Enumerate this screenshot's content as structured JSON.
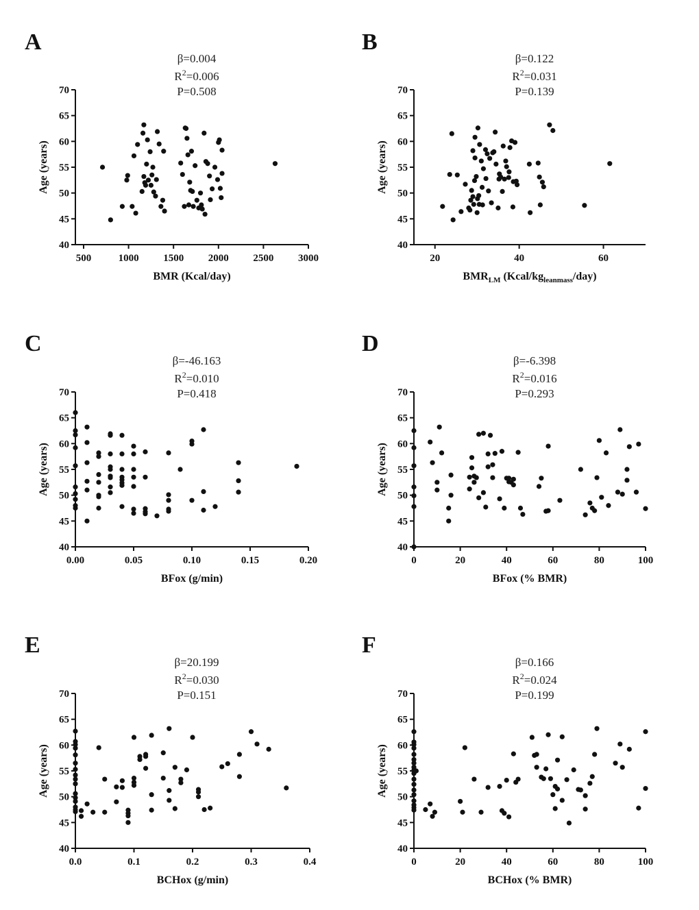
{
  "chart_data": [
    {
      "id": "A",
      "type": "scatter",
      "letter": "A",
      "stats": {
        "beta": "β=0.004",
        "r2_base": "R",
        "r2_sup": "2",
        "r2_val": "=0.006",
        "p": "P=0.508"
      },
      "xlabel": "BMR (Kcal/day)",
      "xlabel_main": "BMR (Kcal/day)",
      "xlabel_sub": "",
      "xlabel_mid": "",
      "xlabel_sub2": "",
      "xlabel_end": "",
      "ylabel": "Age (years)",
      "xlim": [
        400,
        3000
      ],
      "ylim": [
        40,
        70
      ],
      "xticks": [
        500,
        1000,
        1500,
        2000,
        2500,
        3000
      ],
      "xtick_labels": [
        "500",
        "1000",
        "1500",
        "2000",
        "2500",
        "3000"
      ],
      "yticks": [
        40,
        45,
        50,
        55,
        60,
        65,
        70
      ],
      "ytick_labels": [
        "40",
        "45",
        "50",
        "55",
        "60",
        "65",
        "70"
      ],
      "x": [
        710,
        800,
        930,
        980,
        990,
        1040,
        1060,
        1080,
        1100,
        1150,
        1160,
        1170,
        1170,
        1180,
        1190,
        1200,
        1210,
        1220,
        1240,
        1250,
        1260,
        1270,
        1280,
        1300,
        1310,
        1320,
        1340,
        1360,
        1380,
        1390,
        1400,
        1580,
        1600,
        1620,
        1630,
        1640,
        1650,
        1660,
        1670,
        1680,
        1690,
        1700,
        1710,
        1720,
        1740,
        1760,
        1780,
        1800,
        1810,
        1820,
        1840,
        1850,
        1860,
        1880,
        1900,
        1910,
        1930,
        1960,
        1990,
        2000,
        2010,
        2020,
        2030,
        2040,
        2040,
        2630
      ],
      "y": [
        55.0,
        44.8,
        47.4,
        52.5,
        53.4,
        47.4,
        57.2,
        46.1,
        59.4,
        50.3,
        61.6,
        63.2,
        53.2,
        52.0,
        51.5,
        55.6,
        60.3,
        52.5,
        58.0,
        51.5,
        53.5,
        55.0,
        50.2,
        49.4,
        52.6,
        61.9,
        59.5,
        47.4,
        48.6,
        58.1,
        46.5,
        55.8,
        53.6,
        47.4,
        62.6,
        62.5,
        60.6,
        57.4,
        47.7,
        52.1,
        50.5,
        58.1,
        50.3,
        47.4,
        55.3,
        48.6,
        47.1,
        50.0,
        47.7,
        46.9,
        61.6,
        45.9,
        56.1,
        55.7,
        53.3,
        48.7,
        50.8,
        55.0,
        52.6,
        59.8,
        60.3,
        50.9,
        49.1,
        58.3,
        53.8,
        55.7
      ]
    },
    {
      "id": "B",
      "type": "scatter",
      "letter": "B",
      "stats": {
        "beta": "β=0.122",
        "r2_base": "R",
        "r2_sup": "2",
        "r2_val": "=0.031",
        "p": "P=0.139"
      },
      "xlabel": "BMRLM (Kcal/kgleanmass/day)",
      "xlabel_main": "BMR",
      "xlabel_sub": "LM",
      "xlabel_mid": " (Kcal/kg",
      "xlabel_sub2": "leanmass",
      "xlabel_end": "/day)",
      "ylabel": "Age (years)",
      "xlim": [
        15,
        70
      ],
      "ylim": [
        40,
        70
      ],
      "xticks": [
        20,
        40,
        60
      ],
      "xtick_labels": [
        "20",
        "40",
        "60"
      ],
      "yticks": [
        40,
        45,
        50,
        55,
        60,
        65,
        70
      ],
      "ytick_labels": [
        "40",
        "45",
        "50",
        "55",
        "60",
        "65",
        "70"
      ],
      "x": [
        21.8,
        23.5,
        24.0,
        24.3,
        25.3,
        26.2,
        27.2,
        28.0,
        28.3,
        28.5,
        28.7,
        29.0,
        29.0,
        29.2,
        29.4,
        29.5,
        29.5,
        29.8,
        30.0,
        30.1,
        30.2,
        30.4,
        30.5,
        30.6,
        31.0,
        31.2,
        31.3,
        31.5,
        32.0,
        32.1,
        32.4,
        32.7,
        33.0,
        33.4,
        33.7,
        34.0,
        34.3,
        34.5,
        35.0,
        35.2,
        35.3,
        35.6,
        36.0,
        36.2,
        36.5,
        36.8,
        37.0,
        37.5,
        37.6,
        37.8,
        38.2,
        38.5,
        38.6,
        39.0,
        39.3,
        39.5,
        42.4,
        42.6,
        44.5,
        44.8,
        45.0,
        45.5,
        45.8,
        47.2,
        48.0,
        55.5,
        61.5
      ],
      "y": [
        47.4,
        53.6,
        61.5,
        44.8,
        53.5,
        46.4,
        51.7,
        47.1,
        46.7,
        48.6,
        50.5,
        49.3,
        58.2,
        47.8,
        52.4,
        56.8,
        60.8,
        53.2,
        46.2,
        48.9,
        62.6,
        49.5,
        47.8,
        59.4,
        56.2,
        51.1,
        47.7,
        54.7,
        58.4,
        52.8,
        57.6,
        50.4,
        56.7,
        48.1,
        57.8,
        58.0,
        61.8,
        55.6,
        47.1,
        52.7,
        53.7,
        53.1,
        50.3,
        59.1,
        52.7,
        56.2,
        55.1,
        53.0,
        54.1,
        58.8,
        60.1,
        47.3,
        52.2,
        59.8,
        52.3,
        51.6,
        55.6,
        46.2,
        55.8,
        53.1,
        47.7,
        52.1,
        51.2,
        63.2,
        62.1,
        47.6,
        55.7
      ]
    },
    {
      "id": "C",
      "type": "scatter",
      "letter": "C",
      "stats": {
        "beta": "β=-46.163",
        "r2_base": "R",
        "r2_sup": "2",
        "r2_val": "=0.010",
        "p": "P=0.418"
      },
      "xlabel": "BFox (g/min)",
      "xlabel_main": "BFox (g/min)",
      "xlabel_sub": "",
      "xlabel_mid": "",
      "xlabel_sub2": "",
      "xlabel_end": "",
      "ylabel": "Age (years)",
      "xlim": [
        0,
        0.2
      ],
      "ylim": [
        40,
        70
      ],
      "xticks": [
        0,
        0.05,
        0.1,
        0.15,
        0.2
      ],
      "xtick_labels": [
        "0.00",
        "0.05",
        "0.10",
        "0.15",
        "0.20"
      ],
      "yticks": [
        40,
        45,
        50,
        55,
        60,
        65,
        70
      ],
      "ytick_labels": [
        "40",
        "45",
        "50",
        "55",
        "60",
        "65",
        "70"
      ],
      "x": [
        0,
        0,
        0,
        0,
        0,
        0,
        0,
        0,
        0,
        0,
        0.01,
        0.01,
        0.01,
        0.01,
        0.01,
        0.01,
        0.02,
        0.02,
        0.02,
        0.02,
        0.02,
        0.02,
        0.02,
        0.03,
        0.03,
        0.03,
        0.03,
        0.03,
        0.03,
        0.03,
        0.03,
        0.03,
        0.04,
        0.04,
        0.04,
        0.04,
        0.04,
        0.04,
        0.04,
        0.04,
        0.05,
        0.05,
        0.05,
        0.05,
        0.05,
        0.05,
        0.05,
        0.06,
        0.06,
        0.06,
        0.06,
        0.06,
        0.07,
        0.08,
        0.08,
        0.08,
        0.08,
        0.08,
        0.09,
        0.1,
        0.1,
        0.1,
        0.11,
        0.11,
        0.11,
        0.12,
        0.14,
        0.14,
        0.14,
        0.19
      ],
      "y": [
        66.0,
        62.5,
        61.7,
        59.2,
        55.7,
        51.6,
        50.3,
        49.2,
        48.0,
        47.5,
        63.2,
        60.2,
        56.3,
        52.7,
        51.0,
        45.0,
        58.2,
        57.5,
        54.0,
        52.5,
        50.0,
        49.7,
        47.5,
        61.9,
        61.6,
        58.0,
        55.5,
        55.0,
        53.7,
        53.4,
        51.6,
        50.5,
        61.6,
        58.0,
        55.0,
        53.5,
        53.0,
        52.4,
        51.9,
        47.8,
        59.5,
        58.0,
        55.0,
        53.5,
        51.7,
        47.3,
        46.5,
        58.4,
        53.5,
        47.4,
        46.8,
        46.4,
        46.0,
        58.2,
        50.1,
        49.0,
        47.3,
        46.9,
        55.0,
        60.5,
        59.9,
        49.0,
        62.7,
        50.7,
        47.1,
        47.8,
        56.3,
        52.8,
        50.6,
        55.6
      ]
    },
    {
      "id": "D",
      "type": "scatter",
      "letter": "D",
      "stats": {
        "beta": "β=-6.398",
        "r2_base": "R",
        "r2_sup": "2",
        "r2_val": "=0.016",
        "p": "P=0.293"
      },
      "xlabel": "BFox (% BMR)",
      "xlabel_main": "BFox (% BMR)",
      "xlabel_sub": "",
      "xlabel_mid": "",
      "xlabel_sub2": "",
      "xlabel_end": "",
      "ylabel": "Age (years)",
      "xlim": [
        0,
        100
      ],
      "ylim": [
        40,
        70
      ],
      "xticks": [
        0,
        20,
        40,
        60,
        80,
        100
      ],
      "xtick_labels": [
        "0",
        "20",
        "40",
        "60",
        "80",
        "100"
      ],
      "yticks": [
        40,
        45,
        50,
        55,
        60,
        65,
        70
      ],
      "ytick_labels": [
        "40",
        "45",
        "50",
        "55",
        "60",
        "65",
        "70"
      ],
      "x": [
        0,
        0,
        0,
        0,
        0,
        0,
        0,
        7,
        8,
        10,
        10,
        11,
        12,
        15,
        15,
        16,
        16,
        24,
        24,
        25,
        25,
        26,
        26,
        27,
        28,
        28,
        30,
        30,
        31,
        32,
        32,
        33,
        34,
        34,
        35,
        37,
        38,
        39,
        40,
        41,
        41,
        42,
        43,
        43,
        45,
        46,
        47,
        54,
        55,
        57,
        58,
        58,
        63,
        72,
        74,
        76,
        77,
        78,
        79,
        80,
        81,
        83,
        84,
        88,
        89,
        90,
        92,
        92,
        93,
        96,
        97,
        100
      ],
      "y": [
        62.5,
        59.2,
        55.7,
        51.6,
        49.9,
        47.8,
        40.0,
        60.3,
        56.3,
        52.5,
        51.0,
        63.2,
        58.2,
        47.5,
        45.0,
        50.0,
        53.9,
        53.5,
        51.2,
        57.3,
        55.3,
        53.7,
        52.5,
        53.4,
        49.5,
        61.8,
        62.0,
        50.5,
        47.7,
        55.5,
        58.0,
        61.6,
        55.9,
        53.4,
        58.1,
        49.3,
        58.5,
        47.5,
        53.3,
        52.6,
        53.3,
        52.5,
        53.1,
        52.0,
        58.3,
        47.5,
        46.3,
        51.7,
        53.3,
        46.9,
        59.5,
        47.0,
        49.0,
        55.0,
        46.2,
        48.5,
        47.5,
        47.0,
        53.4,
        60.6,
        49.6,
        58.2,
        48.0,
        50.6,
        62.7,
        50.2,
        55.0,
        52.9,
        59.4,
        50.6,
        59.9,
        47.4
      ]
    },
    {
      "id": "E",
      "type": "scatter",
      "letter": "E",
      "stats": {
        "beta": "β=20.199",
        "r2_base": "R",
        "r2_sup": "2",
        "r2_val": "=0.030",
        "p": "P=0.151"
      },
      "xlabel": "BCHox (g/min)",
      "xlabel_main": "BCHox (g/min)",
      "xlabel_sub": "",
      "xlabel_mid": "",
      "xlabel_sub2": "",
      "xlabel_end": "",
      "ylabel": "Age (years)",
      "xlim": [
        0,
        0.4
      ],
      "ylim": [
        40,
        70
      ],
      "xticks": [
        0,
        0.1,
        0.2,
        0.3,
        0.4
      ],
      "xtick_labels": [
        "0.0",
        "0.1",
        "0.2",
        "0.3",
        "0.4"
      ],
      "yticks": [
        40,
        45,
        50,
        55,
        60,
        65,
        70
      ],
      "ytick_labels": [
        "40",
        "45",
        "50",
        "55",
        "60",
        "65",
        "70"
      ],
      "x": [
        0,
        0,
        0,
        0,
        0,
        0,
        0,
        0,
        0,
        0,
        0,
        0,
        0,
        0,
        0,
        0,
        0.01,
        0.01,
        0.02,
        0.03,
        0.04,
        0.05,
        0.05,
        0.07,
        0.07,
        0.08,
        0.08,
        0.09,
        0.09,
        0.09,
        0.09,
        0.1,
        0.1,
        0.1,
        0.1,
        0.11,
        0.11,
        0.12,
        0.12,
        0.12,
        0.13,
        0.13,
        0.13,
        0.15,
        0.15,
        0.16,
        0.16,
        0.16,
        0.17,
        0.17,
        0.18,
        0.18,
        0.19,
        0.2,
        0.21,
        0.21,
        0.21,
        0.22,
        0.23,
        0.25,
        0.26,
        0.28,
        0.28,
        0.3,
        0.31,
        0.33,
        0.36
      ],
      "y": [
        62.7,
        60.7,
        60.1,
        59.4,
        58.1,
        56.5,
        55.3,
        54.2,
        53.4,
        52.5,
        50.6,
        49.8,
        49.1,
        48.0,
        47.5,
        47.1,
        47.3,
        46.2,
        48.6,
        47.0,
        59.5,
        53.4,
        47.0,
        51.9,
        49.0,
        53.1,
        51.8,
        47.4,
        46.8,
        46.3,
        45.0,
        61.5,
        53.6,
        52.8,
        52.2,
        57.8,
        57.2,
        58.2,
        57.8,
        55.5,
        61.9,
        50.4,
        47.4,
        58.5,
        53.6,
        63.2,
        51.2,
        49.3,
        55.7,
        47.7,
        53.4,
        52.7,
        55.2,
        61.5,
        51.4,
        50.9,
        50.0,
        47.5,
        47.8,
        55.8,
        56.4,
        58.2,
        53.9,
        62.6,
        60.2,
        59.2,
        51.7
      ]
    },
    {
      "id": "F",
      "type": "scatter",
      "letter": "F",
      "stats": {
        "beta": "β=0.166",
        "r2_base": "R",
        "r2_sup": "2",
        "r2_val": "=0.024",
        "p": "P=0.199"
      },
      "xlabel": "BCHox (% BMR)",
      "xlabel_main": "BCHox (% BMR)",
      "xlabel_sub": "",
      "xlabel_mid": "",
      "xlabel_sub2": "",
      "xlabel_end": "",
      "ylabel": "Age (years)",
      "xlim": [
        0,
        100
      ],
      "ylim": [
        40,
        70
      ],
      "xticks": [
        0,
        20,
        40,
        60,
        80,
        100
      ],
      "xtick_labels": [
        "0",
        "20",
        "40",
        "60",
        "80",
        "100"
      ],
      "yticks": [
        40,
        45,
        50,
        55,
        60,
        65,
        70
      ],
      "ytick_labels": [
        "40",
        "45",
        "50",
        "55",
        "60",
        "65",
        "70"
      ],
      "x": [
        0,
        0,
        0,
        0,
        0,
        0,
        0,
        0,
        0,
        0,
        0,
        0,
        0,
        0,
        0,
        0,
        0,
        0,
        0,
        1,
        5,
        7,
        8,
        9,
        20,
        21,
        22,
        26,
        29,
        32,
        37,
        38,
        39,
        40,
        41,
        43,
        44,
        45,
        51,
        52,
        53,
        53,
        55,
        56,
        57,
        58,
        59,
        60,
        61,
        61,
        62,
        62,
        64,
        64,
        66,
        67,
        69,
        71,
        72,
        74,
        74,
        76,
        77,
        78,
        79,
        87,
        89,
        90,
        93,
        97,
        100,
        100
      ],
      "y": [
        62.6,
        60.6,
        60.1,
        59.4,
        58.2,
        57.2,
        56.5,
        55.7,
        55.2,
        54.5,
        53.4,
        52.4,
        51.3,
        50.4,
        49.2,
        48.4,
        47.9,
        47.4,
        55.0,
        55.0,
        47.5,
        48.6,
        46.2,
        47.0,
        49.1,
        47.0,
        59.5,
        53.4,
        47.0,
        51.8,
        52.0,
        47.3,
        46.8,
        53.2,
        46.1,
        58.3,
        52.8,
        53.4,
        61.5,
        58.0,
        58.2,
        55.7,
        53.8,
        53.5,
        55.4,
        62.0,
        53.5,
        50.4,
        52.0,
        47.7,
        51.5,
        57.1,
        49.3,
        61.6,
        53.3,
        44.9,
        55.2,
        51.4,
        51.3,
        50.2,
        47.6,
        52.6,
        53.9,
        58.2,
        63.2,
        56.5,
        60.2,
        55.7,
        59.2,
        47.8,
        62.6,
        51.6
      ]
    }
  ]
}
